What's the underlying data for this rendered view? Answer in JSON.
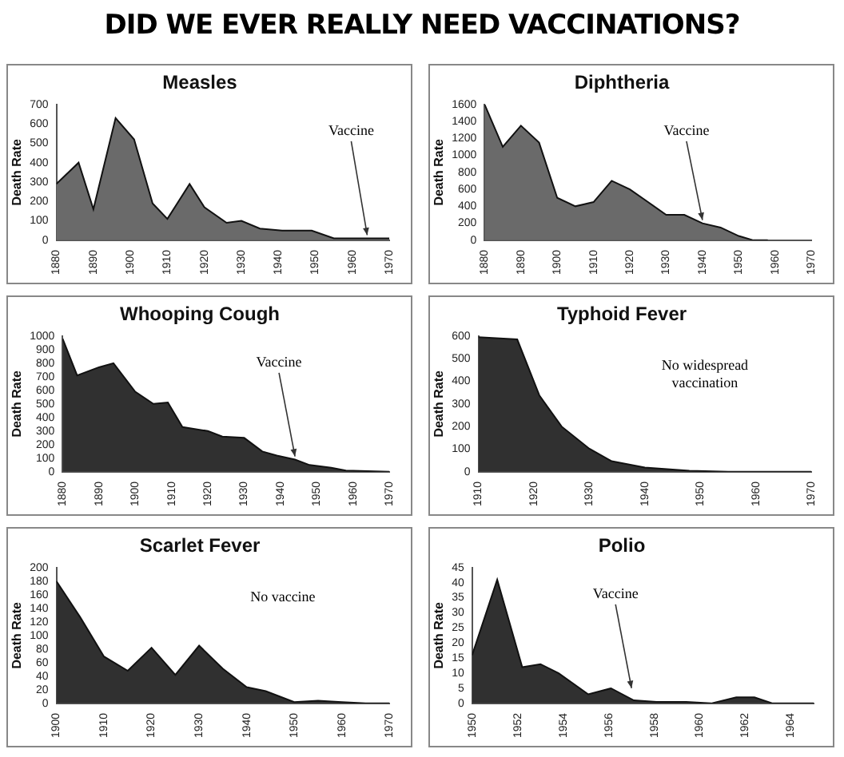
{
  "chart_data": [
    {
      "type": "area",
      "title": "Measles",
      "ylabel": "Death Rate",
      "color": "#6a6a6a",
      "annotations": [
        "DID WE EVER REALLY NEED VACCINATIONS?",
        {
          "text": "Vaccine",
          "x": 1964,
          "y": 10
        }
      ],
      "x": [
        1880,
        1886,
        1890,
        1896,
        1901,
        1906,
        1910,
        1916,
        1920,
        1926,
        1930,
        1935,
        1941,
        1949,
        1955,
        1970
      ],
      "values": [
        290,
        400,
        160,
        630,
        520,
        190,
        110,
        290,
        170,
        90,
        100,
        60,
        50,
        50,
        10,
        10
      ],
      "xlim": [
        1880,
        1970
      ],
      "xticks": [
        1880,
        1890,
        1900,
        1910,
        1920,
        1930,
        1940,
        1950,
        1960,
        1970
      ],
      "ylim": [
        0,
        700
      ],
      "yticks": [
        0,
        100,
        200,
        300,
        400,
        500,
        600,
        700
      ],
      "grid": false
    },
    {
      "type": "area",
      "title": "Diphtheria",
      "ylabel": "Death Rate",
      "color": "#6a6a6a",
      "annotations": [
        {
          "text": "Vaccine",
          "x": 1940,
          "y": 200
        }
      ],
      "x": [
        1880,
        1885,
        1890,
        1895,
        1900,
        1905,
        1910,
        1915,
        1920,
        1925,
        1930,
        1935,
        1940,
        1945,
        1950,
        1954,
        1958
      ],
      "values": [
        1600,
        1100,
        1350,
        1150,
        500,
        400,
        450,
        700,
        600,
        450,
        300,
        300,
        200,
        150,
        50,
        0,
        0
      ],
      "xlim": [
        1880,
        1970
      ],
      "xticks": [
        1880,
        1890,
        1900,
        1910,
        1920,
        1930,
        1940,
        1950,
        1960,
        1970
      ],
      "ylim": [
        0,
        1600
      ],
      "yticks": [
        0,
        200,
        400,
        600,
        800,
        1000,
        1200,
        1400,
        1600
      ],
      "grid": false
    },
    {
      "type": "area",
      "title": "Whooping Cough",
      "ylabel": "Death Rate",
      "color": "#303030",
      "annotations": [
        {
          "text": "Vaccine",
          "x": 1944,
          "y": 90
        }
      ],
      "x": [
        1880,
        1884,
        1890,
        1894,
        1900,
        1905,
        1909,
        1913,
        1920,
        1924,
        1930,
        1935,
        1939,
        1944,
        1948,
        1954,
        1958,
        1970
      ],
      "values": [
        980,
        710,
        770,
        800,
        590,
        500,
        510,
        330,
        300,
        260,
        250,
        150,
        120,
        90,
        50,
        30,
        10,
        0
      ],
      "xlim": [
        1880,
        1970
      ],
      "xticks": [
        1880,
        1890,
        1900,
        1910,
        1920,
        1930,
        1940,
        1950,
        1960,
        1970
      ],
      "ylim": [
        0,
        1000
      ],
      "yticks": [
        0,
        100,
        200,
        300,
        400,
        500,
        600,
        700,
        800,
        900,
        1000
      ],
      "grid": false
    },
    {
      "type": "area",
      "title": "Typhoid Fever",
      "ylabel": "Death Rate",
      "color": "#303030",
      "annotations": [
        "No widespread vaccination"
      ],
      "x": [
        1910,
        1917,
        1921,
        1925,
        1930,
        1934,
        1940,
        1948,
        1955,
        1970
      ],
      "values": [
        595,
        585,
        337,
        200,
        102,
        47,
        19,
        5,
        0,
        0
      ],
      "xlim": [
        1910,
        1970
      ],
      "xticks": [
        1910,
        1920,
        1930,
        1940,
        1950,
        1960,
        1970
      ],
      "ylim": [
        0,
        600
      ],
      "yticks": [
        0,
        100,
        200,
        300,
        400,
        500,
        600
      ],
      "grid": false
    },
    {
      "type": "area",
      "title": "Scarlet Fever",
      "ylabel": "Death Rate",
      "color": "#303030",
      "annotations": [
        "No vaccine"
      ],
      "x": [
        1900,
        1905,
        1910,
        1915,
        1920,
        1925,
        1930,
        1935,
        1940,
        1944,
        1950,
        1955,
        1960,
        1965,
        1970
      ],
      "values": [
        180,
        127,
        69,
        48,
        82,
        42,
        85,
        51,
        24,
        18,
        2,
        4,
        2,
        0,
        0
      ],
      "xlim": [
        1900,
        1970
      ],
      "xticks": [
        1900,
        1910,
        1920,
        1930,
        1940,
        1950,
        1960,
        1970
      ],
      "ylim": [
        0,
        200
      ],
      "yticks": [
        0,
        20,
        40,
        60,
        80,
        100,
        120,
        140,
        160,
        180,
        200
      ],
      "grid": false
    },
    {
      "type": "area",
      "title": "Polio",
      "ylabel": "Death Rate",
      "color": "#303030",
      "annotations": [
        {
          "text": "Vaccine",
          "x": 1957,
          "y": 4
        }
      ],
      "x": [
        1950,
        1951.1,
        1952.2,
        1953,
        1953.8,
        1955.1,
        1956.1,
        1957.1,
        1958.1,
        1959.4,
        1960.5,
        1961.6,
        1962.4,
        1963.2,
        1965
      ],
      "values": [
        16,
        41,
        12,
        13,
        10,
        3,
        5,
        1,
        0.5,
        0.5,
        0,
        2,
        2,
        0,
        0
      ],
      "xlim": [
        1950,
        1965
      ],
      "xticks": [
        1950,
        1952,
        1954,
        1956,
        1958,
        1960,
        1962,
        1964
      ],
      "ylim": [
        0,
        45
      ],
      "yticks": [
        0,
        5,
        10,
        15,
        20,
        25,
        30,
        35,
        40,
        45
      ],
      "grid": false
    }
  ]
}
